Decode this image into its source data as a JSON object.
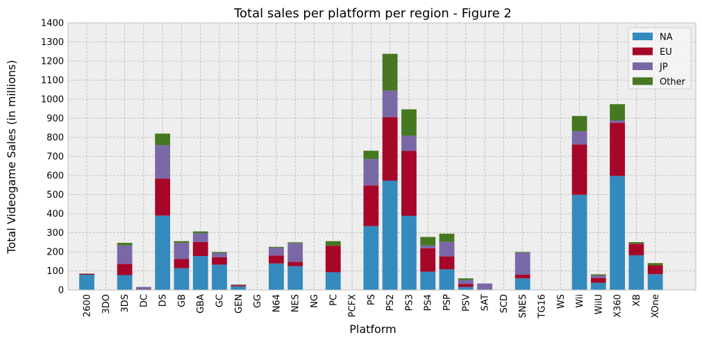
{
  "chart_data": {
    "type": "bar",
    "stacked": true,
    "title": "Total sales per platform per region - Figure 2",
    "xlabel": "Platform",
    "ylabel": "Total Videogame Sales (in millions)",
    "ylim": [
      0,
      1400
    ],
    "yticks": [
      0,
      100,
      200,
      300,
      400,
      500,
      600,
      700,
      800,
      900,
      1000,
      1100,
      1200,
      1300,
      1400
    ],
    "grid": true,
    "legend_position": "top-right",
    "categories": [
      "2600",
      "3DO",
      "3DS",
      "DC",
      "DS",
      "GB",
      "GBA",
      "GC",
      "GEN",
      "GG",
      "N64",
      "NES",
      "NG",
      "PC",
      "PCFX",
      "PS",
      "PS2",
      "PS3",
      "PS4",
      "PSP",
      "PSV",
      "SAT",
      "SCD",
      "SNES",
      "TG16",
      "WS",
      "Wii",
      "WiiU",
      "X360",
      "XB",
      "XOne"
    ],
    "series": [
      {
        "name": "NA",
        "color": "#348ABD",
        "values": [
          80,
          0,
          78,
          5,
          390,
          114,
          178,
          133,
          19,
          0,
          139,
          125,
          0,
          93,
          0,
          335,
          573,
          389,
          96,
          108,
          16,
          1,
          1,
          61,
          0,
          0,
          499,
          38,
          598,
          182,
          83
        ]
      },
      {
        "name": "EU",
        "color": "#A60628",
        "values": [
          5,
          0,
          59,
          2,
          194,
          48,
          73,
          39,
          6,
          0,
          42,
          22,
          0,
          139,
          0,
          213,
          333,
          340,
          123,
          68,
          16,
          1,
          0,
          19,
          0,
          0,
          264,
          25,
          278,
          60,
          46
        ]
      },
      {
        "name": "JP",
        "color": "#7A68A6",
        "values": [
          0,
          0,
          97,
          9,
          176,
          85,
          47,
          22,
          3,
          0,
          41,
          99,
          2,
          0,
          0,
          139,
          139,
          80,
          14,
          77,
          21,
          32,
          0,
          116,
          2,
          2,
          69,
          13,
          13,
          1,
          0
        ]
      },
      {
        "name": "Other",
        "color": "#467821",
        "values": [
          1,
          0,
          13,
          0,
          60,
          9,
          9,
          5,
          1,
          0,
          4,
          4,
          0,
          24,
          0,
          43,
          193,
          138,
          45,
          42,
          8,
          0,
          0,
          3,
          0,
          0,
          80,
          6,
          85,
          8,
          12
        ]
      }
    ]
  }
}
